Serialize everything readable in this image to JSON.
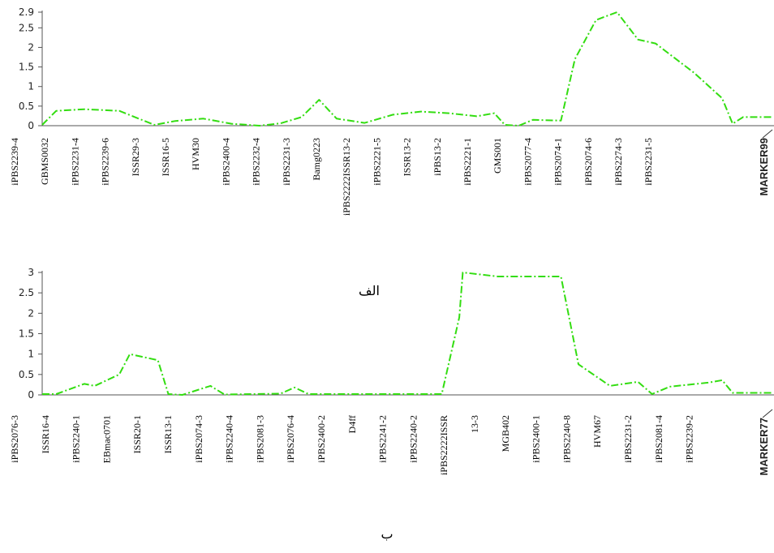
{
  "line_color": "#33dd11",
  "axis_color": "#555555",
  "chart_data": [
    {
      "type": "line",
      "caption": "الف",
      "ylim": [
        0,
        2.9
      ],
      "yticks": [
        "2.9",
        "2.5",
        "2",
        "1.5",
        "1",
        "0.5",
        "0"
      ],
      "ytick_values": [
        2.9,
        2.5,
        2,
        1.5,
        1,
        0.5,
        0
      ],
      "x_labels": [
        "iPBS2239-4",
        "GBMS0032",
        "iPBS2231-4",
        "iPBS2239-6",
        "ISSR29-3",
        "ISSR16-5",
        "HVM30",
        "iPBS2400-4",
        "iPBS2232-4",
        "iPBS2231-3",
        "Bamg0223",
        "iPBS2222ISSR13-2",
        "iPBS2221-5",
        "ISSR13-2",
        "iPBS13-2",
        "iPBS2221-1",
        "GMS001",
        "iPBS2077-4",
        "iPBS2074-1",
        "iPBS2074-6",
        "iPBS2274-3",
        "iPBS2231-5"
      ],
      "end_labels": [
        "MARKER99"
      ],
      "profile": [
        [
          0,
          0.02
        ],
        [
          0.02,
          0.38
        ],
        [
          0.06,
          0.42
        ],
        [
          0.11,
          0.38
        ],
        [
          0.16,
          0.02
        ],
        [
          0.19,
          0.12
        ],
        [
          0.23,
          0.18
        ],
        [
          0.27,
          0.05
        ],
        [
          0.31,
          0.0
        ],
        [
          0.34,
          0.06
        ],
        [
          0.37,
          0.22
        ],
        [
          0.395,
          0.66
        ],
        [
          0.42,
          0.18
        ],
        [
          0.46,
          0.07
        ],
        [
          0.5,
          0.28
        ],
        [
          0.54,
          0.36
        ],
        [
          0.58,
          0.32
        ],
        [
          0.62,
          0.24
        ],
        [
          0.645,
          0.32
        ],
        [
          0.66,
          0.02
        ],
        [
          0.68,
          0.0
        ],
        [
          0.7,
          0.15
        ],
        [
          0.74,
          0.13
        ],
        [
          0.76,
          1.7
        ],
        [
          0.79,
          2.7
        ],
        [
          0.82,
          2.9
        ],
        [
          0.85,
          2.2
        ],
        [
          0.875,
          2.1
        ],
        [
          0.93,
          1.35
        ],
        [
          0.97,
          0.7
        ],
        [
          0.985,
          0.05
        ],
        [
          1.0,
          0.22
        ],
        [
          1.04,
          0.22
        ]
      ]
    },
    {
      "type": "line",
      "caption": "ب",
      "ylim": [
        0,
        3
      ],
      "yticks": [
        "3",
        "2.5",
        "2",
        "1.5",
        "1",
        "0.5",
        "0"
      ],
      "ytick_values": [
        3,
        2.5,
        2,
        1.5,
        1,
        0.5,
        0
      ],
      "x_labels": [
        "iPBS2076-3",
        "ISSR16-4",
        "iPBS2240-1",
        "EBmac0701",
        "ISSR20-1",
        "ISSR13-1",
        "iPBS2074-3",
        "iPBS2240-4",
        "iPBS2081-3",
        "iPBS2076-4",
        "iPBS2400-2",
        "D4ff",
        "iPBS2241-2",
        "iPBS2240-2",
        "iPBS2222ISSR",
        "13-3",
        "MGB402",
        "iPBS2400-1",
        "iPBS2240-8",
        "HVM67",
        "iPBS2231-2",
        "iPBS2081-4",
        "iPBS2239-2"
      ],
      "end_labels": [
        "MARKER77"
      ],
      "profile": [
        [
          0,
          0.02
        ],
        [
          0.02,
          0.02
        ],
        [
          0.06,
          0.27
        ],
        [
          0.075,
          0.22
        ],
        [
          0.11,
          0.5
        ],
        [
          0.125,
          1.0
        ],
        [
          0.165,
          0.85
        ],
        [
          0.18,
          0.02
        ],
        [
          0.2,
          0.0
        ],
        [
          0.24,
          0.22
        ],
        [
          0.26,
          0.01
        ],
        [
          0.34,
          0.03
        ],
        [
          0.36,
          0.18
        ],
        [
          0.38,
          0.02
        ],
        [
          0.57,
          0.02
        ],
        [
          0.595,
          1.9
        ],
        [
          0.6,
          3.0
        ],
        [
          0.65,
          2.9
        ],
        [
          0.74,
          2.9
        ],
        [
          0.765,
          0.75
        ],
        [
          0.81,
          0.22
        ],
        [
          0.85,
          0.32
        ],
        [
          0.87,
          0.02
        ],
        [
          0.895,
          0.2
        ],
        [
          0.95,
          0.3
        ],
        [
          0.97,
          0.36
        ],
        [
          0.985,
          0.05
        ],
        [
          1.04,
          0.05
        ]
      ]
    }
  ]
}
